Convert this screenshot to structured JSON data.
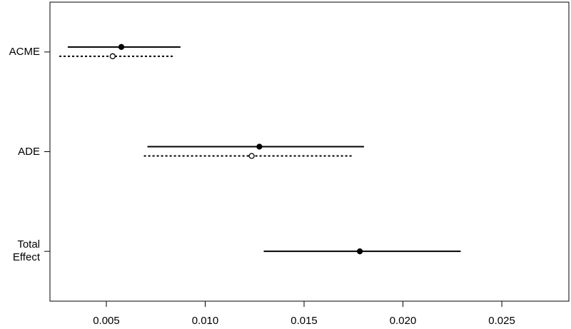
{
  "chart_data": {
    "type": "interval",
    "categories": [
      "ACME",
      "ADE",
      "Total Effect"
    ],
    "series": [
      {
        "color": "#000000",
        "line_style": "solid",
        "marker": "filled",
        "values": [
          0.00576,
          0.01274,
          0.01782
        ],
        "lower": [
          0.00305,
          0.00708,
          0.01296
        ],
        "upper": [
          0.00875,
          0.01803,
          0.02292
        ]
      },
      {
        "color": "#000000",
        "line_style": "dotted",
        "marker": "open",
        "values": [
          0.00532,
          0.01235,
          null
        ],
        "lower": [
          0.00262,
          0.0069,
          null
        ],
        "upper": [
          0.00847,
          0.01751,
          null
        ]
      }
    ],
    "xlim": [
      0.00215,
      0.02839
    ],
    "xticks": [
      0.005,
      0.01,
      0.015,
      0.02,
      0.025
    ]
  }
}
